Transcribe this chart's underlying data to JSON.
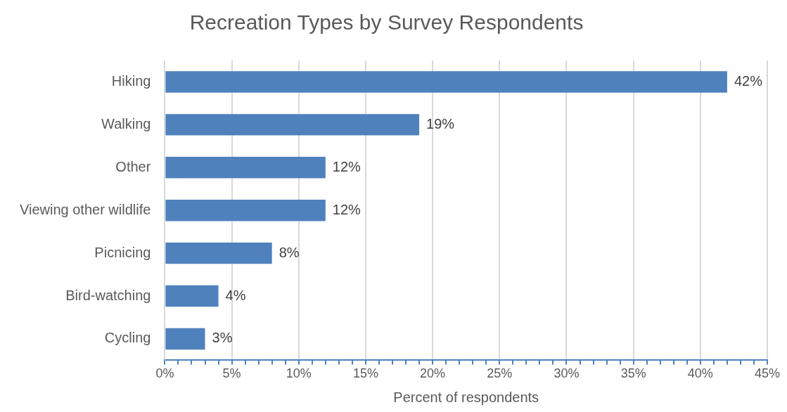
{
  "chart_data": {
    "type": "bar",
    "orientation": "horizontal",
    "title": "Recreation Types by Survey Respondents",
    "xlabel": "Percent of respondents",
    "categories": [
      "Hiking",
      "Walking",
      "Other",
      "Viewing other wildlife",
      "Picnicing",
      "Bird-watching",
      "Cycling"
    ],
    "values": [
      42,
      19,
      12,
      12,
      8,
      4,
      3
    ],
    "value_labels": [
      "42%",
      "19%",
      "12%",
      "12%",
      "8%",
      "4%",
      "3%"
    ],
    "color": "#4f81bd",
    "xlim": [
      0,
      45
    ],
    "xticks": [
      {
        "value": 0,
        "label": "0%"
      },
      {
        "value": 1,
        "label": null
      },
      {
        "value": 2,
        "label": null
      },
      {
        "value": 3,
        "label": null
      },
      {
        "value": 4,
        "label": null
      },
      {
        "value": 5,
        "label": "5%"
      },
      {
        "value": 6,
        "label": null
      },
      {
        "value": 7,
        "label": null
      },
      {
        "value": 8,
        "label": null
      },
      {
        "value": 9,
        "label": null
      },
      {
        "value": 10,
        "label": "10%"
      },
      {
        "value": 11,
        "label": null
      },
      {
        "value": 12,
        "label": null
      },
      {
        "value": 13,
        "label": null
      },
      {
        "value": 14,
        "label": null
      },
      {
        "value": 15,
        "label": "15%"
      },
      {
        "value": 16,
        "label": null
      },
      {
        "value": 17,
        "label": null
      },
      {
        "value": 18,
        "label": null
      },
      {
        "value": 19,
        "label": null
      },
      {
        "value": 20,
        "label": "20%"
      },
      {
        "value": 21,
        "label": null
      },
      {
        "value": 22,
        "label": null
      },
      {
        "value": 23,
        "label": null
      },
      {
        "value": 24,
        "label": null
      },
      {
        "value": 25,
        "label": "25%"
      },
      {
        "value": 26,
        "label": null
      },
      {
        "value": 27,
        "label": null
      },
      {
        "value": 28,
        "label": null
      },
      {
        "value": 29,
        "label": null
      },
      {
        "value": 30,
        "label": "30%"
      },
      {
        "value": 31,
        "label": null
      },
      {
        "value": 32,
        "label": null
      },
      {
        "value": 33,
        "label": null
      },
      {
        "value": 34,
        "label": null
      },
      {
        "value": 35,
        "label": "35%"
      },
      {
        "value": 36,
        "label": null
      },
      {
        "value": 37,
        "label": null
      },
      {
        "value": 38,
        "label": null
      },
      {
        "value": 39,
        "label": null
      },
      {
        "value": 40,
        "label": "40%"
      },
      {
        "value": 41,
        "label": null
      },
      {
        "value": 42,
        "label": null
      },
      {
        "value": 43,
        "label": null
      },
      {
        "value": 44,
        "label": null
      },
      {
        "value": 45,
        "label": "45%"
      }
    ],
    "grid": "x",
    "legend": false
  }
}
